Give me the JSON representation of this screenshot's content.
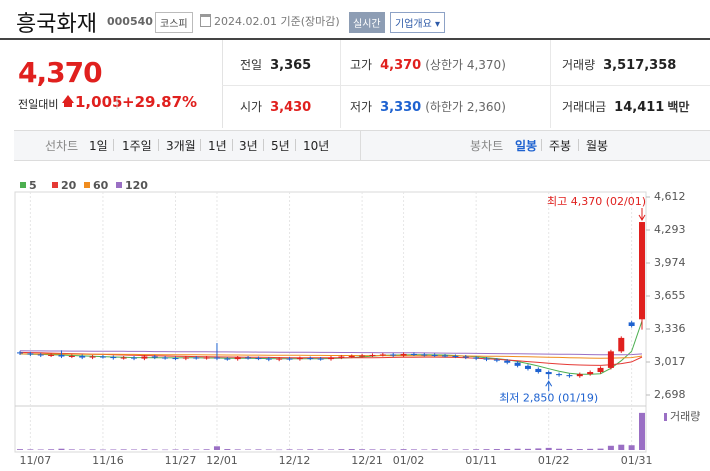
{
  "header": {
    "name": "흥국화재",
    "code": "000540",
    "market": "코스피",
    "date": "2024.02.01 기준(장마감)",
    "realtime": "실시간",
    "company_info": "기업개요"
  },
  "quote": {
    "price": "4,370",
    "change_label": "전일대비",
    "change": "1,005",
    "change_rate": "+29.87%",
    "stats": [
      {
        "label": "전일",
        "value": "3,365",
        "color": "#222222"
      },
      {
        "label": "고가",
        "value": "4,370",
        "note": "(상한가 4,370)",
        "color": "#e0201e"
      },
      {
        "label": "거래량",
        "value": "3,517,358",
        "color": "#222222"
      },
      {
        "label": "시가",
        "value": "3,430",
        "color": "#e0201e"
      },
      {
        "label": "저가",
        "value": "3,330",
        "note": "(하한가 2,360)",
        "color": "#1e62d0"
      },
      {
        "label": "거래대금",
        "value": "14,411",
        "unit": "백만",
        "color": "#222222"
      }
    ]
  },
  "tabs": {
    "line_label": "선차트",
    "line_items": [
      "1일",
      "1주일",
      "3개월",
      "1년",
      "3년",
      "5년",
      "10년"
    ],
    "candle_label": "봉차트",
    "candle_items": [
      "일봉",
      "주봉",
      "월봉"
    ]
  },
  "chart_data": {
    "type": "candlestick",
    "categories": [
      null,
      "11/07",
      null,
      null,
      null,
      null,
      null,
      null,
      "11/16",
      null,
      null,
      null,
      null,
      null,
      null,
      "11/27",
      null,
      null,
      null,
      "12/01",
      null,
      null,
      null,
      null,
      null,
      null,
      "12/12",
      null,
      null,
      null,
      null,
      null,
      null,
      "12/21",
      null,
      null,
      null,
      "01/02",
      null,
      null,
      null,
      null,
      null,
      null,
      "01/11",
      null,
      null,
      null,
      null,
      null,
      null,
      "01/22",
      null,
      null,
      null,
      null,
      null,
      null,
      null,
      "01/31",
      null
    ],
    "open": [
      3110,
      3100,
      3090,
      3080,
      3085,
      3070,
      3075,
      3060,
      3070,
      3065,
      3055,
      3060,
      3050,
      3070,
      3060,
      3055,
      3050,
      3060,
      3055,
      3060,
      3050,
      3045,
      3060,
      3055,
      3050,
      3040,
      3050,
      3045,
      3055,
      3050,
      3045,
      3060,
      3070,
      3075,
      3080,
      3085,
      3090,
      3080,
      3095,
      3090,
      3085,
      3080,
      3075,
      3070,
      3060,
      3050,
      3040,
      3030,
      3010,
      2980,
      2950,
      2920,
      2900,
      2890,
      2880,
      2900,
      2920,
      2960,
      3120,
      3400,
      3430
    ],
    "high": [
      3125,
      3115,
      3105,
      3100,
      3130,
      3090,
      3090,
      3085,
      3085,
      3080,
      3075,
      3075,
      3085,
      3085,
      3075,
      3070,
      3075,
      3075,
      3075,
      3200,
      3065,
      3075,
      3075,
      3070,
      3065,
      3065,
      3065,
      3070,
      3070,
      3065,
      3075,
      3085,
      3090,
      3095,
      3100,
      3105,
      3105,
      3110,
      3110,
      3105,
      3100,
      3095,
      3090,
      3085,
      3075,
      3065,
      3055,
      3045,
      3025,
      2995,
      2965,
      2935,
      2915,
      2905,
      2915,
      2935,
      2975,
      3135,
      3265,
      3415,
      4370
    ],
    "low": [
      3085,
      3075,
      3065,
      3065,
      3055,
      3055,
      3045,
      3045,
      3050,
      3040,
      3040,
      3035,
      3035,
      3045,
      3040,
      3035,
      3035,
      3040,
      3040,
      3035,
      3030,
      3030,
      3040,
      3035,
      3025,
      3025,
      3030,
      3030,
      3035,
      3030,
      3030,
      3045,
      3055,
      3060,
      3065,
      3070,
      3065,
      3065,
      3075,
      3070,
      3065,
      3060,
      3055,
      3045,
      3035,
      3025,
      3015,
      2995,
      2965,
      2935,
      2905,
      2850,
      2875,
      2865,
      2865,
      2885,
      2905,
      2945,
      3105,
      3350,
      3330
    ],
    "close": [
      3100,
      3090,
      3080,
      3085,
      3070,
      3075,
      3060,
      3070,
      3065,
      3055,
      3060,
      3050,
      3070,
      3060,
      3055,
      3050,
      3060,
      3055,
      3060,
      3050,
      3045,
      3060,
      3055,
      3050,
      3040,
      3050,
      3045,
      3055,
      3050,
      3045,
      3060,
      3070,
      3075,
      3080,
      3085,
      3090,
      3080,
      3095,
      3090,
      3085,
      3080,
      3075,
      3070,
      3060,
      3050,
      3040,
      3030,
      3010,
      2980,
      2950,
      2920,
      2900,
      2890,
      2880,
      2900,
      2920,
      2960,
      3120,
      3250,
      3365,
      4370
    ],
    "volume": [
      80000,
      60000,
      50000,
      70000,
      120000,
      60000,
      50000,
      60000,
      40000,
      50000,
      60000,
      50000,
      70000,
      50000,
      40000,
      50000,
      60000,
      50000,
      70000,
      350000,
      90000,
      60000,
      50000,
      60000,
      50000,
      40000,
      60000,
      50000,
      70000,
      60000,
      50000,
      80000,
      90000,
      70000,
      60000,
      60000,
      50000,
      80000,
      60000,
      50000,
      70000,
      60000,
      50000,
      60000,
      70000,
      80000,
      90000,
      100000,
      120000,
      110000,
      150000,
      200000,
      120000,
      100000,
      90000,
      110000,
      130000,
      400000,
      500000,
      450000,
      3517358
    ],
    "volume_label": "거래량",
    "volume_color": "#9a6fc4",
    "volume_ylim": [
      0,
      3600000
    ],
    "up_color": "#e0201e",
    "down_color": "#1e62d0",
    "ylim": [
      2698,
      4612
    ],
    "yticks": [
      {
        "value": 2698,
        "label": "2,698"
      },
      {
        "value": 3017,
        "label": "3,017"
      },
      {
        "value": 3336,
        "label": "3,336"
      },
      {
        "value": 3655,
        "label": "3,655"
      },
      {
        "value": 3974,
        "label": "3,974"
      },
      {
        "value": 4293,
        "label": "4,293"
      },
      {
        "value": 4612,
        "label": "4,612"
      }
    ],
    "series": [
      {
        "name": "5",
        "color": "#4caf50",
        "values": [
          3095,
          3092,
          3090,
          3088,
          3085,
          3080,
          3076,
          3072,
          3069,
          3065,
          3062,
          3060,
          3060,
          3059,
          3058,
          3057,
          3059,
          3058,
          3056,
          3056,
          3054,
          3054,
          3054,
          3052,
          3050,
          3049,
          3048,
          3048,
          3049,
          3049,
          3051,
          3055,
          3060,
          3066,
          3074,
          3082,
          3084,
          3086,
          3088,
          3088,
          3086,
          3085,
          3080,
          3074,
          3067,
          3059,
          3050,
          3038,
          3022,
          3002,
          2978,
          2952,
          2928,
          2908,
          2898,
          2898,
          2904,
          2956,
          3030,
          3119,
          3413
        ]
      },
      {
        "name": "20",
        "color": "#e53935",
        "values": [
          3110,
          3108,
          3106,
          3103,
          3100,
          3098,
          3095,
          3092,
          3090,
          3087,
          3085,
          3082,
          3080,
          3078,
          3075,
          3073,
          3071,
          3069,
          3067,
          3066,
          3065,
          3064,
          3063,
          3062,
          3061,
          3060,
          3059,
          3059,
          3058,
          3058,
          3058,
          3058,
          3058,
          3058,
          3059,
          3060,
          3061,
          3062,
          3063,
          3064,
          3064,
          3063,
          3061,
          3058,
          3054,
          3049,
          3043,
          3036,
          3029,
          3021,
          3013,
          3005,
          2998,
          2992,
          2988,
          2985,
          2984,
          2990,
          3002,
          3018,
          3065
        ]
      },
      {
        "name": "60",
        "color": "#f08c1e",
        "values": [
          3095,
          3095,
          3094,
          3094,
          3093,
          3093,
          3092,
          3092,
          3091,
          3091,
          3090,
          3090,
          3089,
          3089,
          3088,
          3088,
          3087,
          3087,
          3086,
          3086,
          3085,
          3085,
          3084,
          3084,
          3083,
          3083,
          3082,
          3082,
          3081,
          3081,
          3080,
          3080,
          3080,
          3079,
          3079,
          3079,
          3078,
          3078,
          3078,
          3077,
          3077,
          3076,
          3076,
          3075,
          3074,
          3073,
          3072,
          3071,
          3069,
          3067,
          3065,
          3063,
          3061,
          3059,
          3057,
          3055,
          3054,
          3055,
          3057,
          3060,
          3075
        ]
      },
      {
        "name": "120",
        "color": "#9a6fc4",
        "values": [
          3125,
          3124,
          3124,
          3123,
          3123,
          3122,
          3122,
          3121,
          3121,
          3120,
          3120,
          3119,
          3119,
          3118,
          3118,
          3117,
          3117,
          3116,
          3116,
          3115,
          3115,
          3114,
          3114,
          3113,
          3113,
          3112,
          3112,
          3111,
          3111,
          3110,
          3110,
          3109,
          3109,
          3108,
          3108,
          3107,
          3107,
          3106,
          3106,
          3105,
          3104,
          3103,
          3102,
          3101,
          3100,
          3099,
          3098,
          3097,
          3096,
          3095,
          3094,
          3093,
          3092,
          3091,
          3090,
          3089,
          3088,
          3088,
          3088,
          3089,
          3095
        ]
      }
    ],
    "annotations": [
      {
        "text": "최고 4,370 (02/01)",
        "color": "#e0201e"
      },
      {
        "text": "최저 2,850 (01/19)",
        "color": "#1e62d0"
      }
    ]
  }
}
